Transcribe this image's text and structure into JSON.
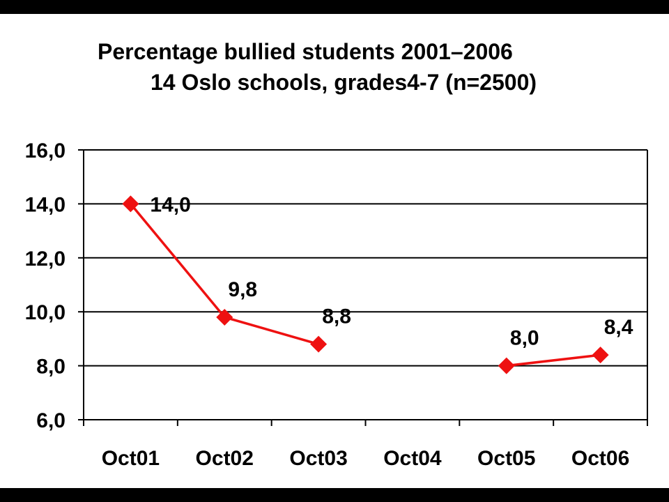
{
  "title_line1": "Percentage bullied students 2001–2006",
  "title_line2": "14 Oslo schools, grades4-7 (n=2500)",
  "chart_data": {
    "type": "line",
    "title": "Percentage bullied students 2001–2006 14 Oslo schools, grades4-7 (n=2500)",
    "categories": [
      "Oct01",
      "Oct02",
      "Oct03",
      "Oct04",
      "Oct05",
      "Oct06"
    ],
    "series": [
      {
        "values": [
          14.0,
          9.8,
          8.8,
          null,
          8.0,
          8.4
        ],
        "color": "#ee1111"
      }
    ],
    "data_labels": [
      "14,0",
      "9,8",
      "8,8",
      "",
      "8,0",
      "8,4"
    ],
    "y_ticks": [
      6,
      8,
      10,
      12,
      14,
      16
    ],
    "y_tick_labels": [
      "6,0",
      "8,0",
      "10,0",
      "12,0",
      "14,0",
      "16,0"
    ],
    "ylim": [
      6,
      16
    ],
    "grid": true,
    "legend": false,
    "xlabel": "",
    "ylabel": ""
  }
}
